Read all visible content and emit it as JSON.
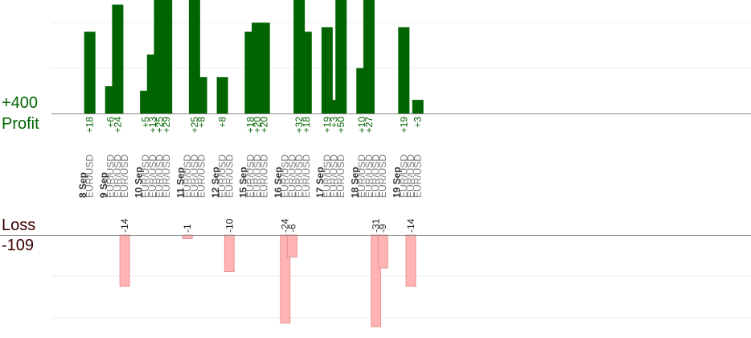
{
  "summary": {
    "profit_total": "+400",
    "profit_label": "Profit",
    "loss_label": "Loss",
    "loss_total": "-109"
  },
  "colors": {
    "profit_bar": "#006400",
    "profit_text": "#006400",
    "loss_bar": "#ffb3b3",
    "loss_bar_stroke": "#e08a8a",
    "loss_text": "#222222",
    "date_text": "#333333",
    "pair_text": "#777777",
    "axis": "#888888",
    "grid": "#eeeeee"
  },
  "chart_data": {
    "type": "bar",
    "profit_ylim": [
      0,
      25
    ],
    "loss_ylim": [
      -25,
      0
    ],
    "grid": true,
    "rows": [
      {
        "kind": "date",
        "label": "8 Sep"
      },
      {
        "kind": "trade",
        "pair": "EUR/USD",
        "value": 18
      },
      {
        "kind": "gap"
      },
      {
        "kind": "date",
        "label": "9 Sep"
      },
      {
        "kind": "trade",
        "pair": "EUR/USD",
        "value": 6
      },
      {
        "kind": "trade",
        "pair": "EUR/USD",
        "value": 24
      },
      {
        "kind": "trade",
        "pair": "EUR/USD",
        "value": -14
      },
      {
        "kind": "gap"
      },
      {
        "kind": "date",
        "label": "10 Sep"
      },
      {
        "kind": "trade",
        "pair": "EUR/USD",
        "value": 5
      },
      {
        "kind": "trade",
        "pair": "EUR/USD",
        "value": 13
      },
      {
        "kind": "trade",
        "pair": "EUR/USD",
        "value": 25
      },
      {
        "kind": "trade",
        "pair": "EUR/USD",
        "value": 29
      },
      {
        "kind": "gap"
      },
      {
        "kind": "date",
        "label": "11 Sep"
      },
      {
        "kind": "trade",
        "pair": "EUR/USD",
        "value": -1
      },
      {
        "kind": "trade",
        "pair": "EUR/USD",
        "value": 25
      },
      {
        "kind": "trade",
        "pair": "EUR/USD",
        "value": 8
      },
      {
        "kind": "gap"
      },
      {
        "kind": "date",
        "label": "12 Sep"
      },
      {
        "kind": "trade",
        "pair": "EUR/USD",
        "value": 8
      },
      {
        "kind": "trade",
        "pair": "EUR/USD",
        "value": -10
      },
      {
        "kind": "gap"
      },
      {
        "kind": "date",
        "label": "15 Sep"
      },
      {
        "kind": "trade",
        "pair": "EUR/USD",
        "value": 18
      },
      {
        "kind": "trade",
        "pair": "EUR/USD",
        "value": 20
      },
      {
        "kind": "trade",
        "pair": "EUR/USD",
        "value": 20
      },
      {
        "kind": "gap"
      },
      {
        "kind": "date",
        "label": "16 Sep"
      },
      {
        "kind": "trade",
        "pair": "EUR/USD",
        "value": -24
      },
      {
        "kind": "trade",
        "pair": "EUR/USD",
        "value": -6
      },
      {
        "kind": "trade",
        "pair": "EUR/USD",
        "value": 32
      },
      {
        "kind": "trade",
        "pair": "EUR/USD",
        "value": 18
      },
      {
        "kind": "gap"
      },
      {
        "kind": "date",
        "label": "17 Sep"
      },
      {
        "kind": "trade",
        "pair": "EUR/USD",
        "value": 19
      },
      {
        "kind": "trade",
        "pair": "EUR/USD",
        "value": 3
      },
      {
        "kind": "trade",
        "pair": "EUR/USD",
        "value": 50
      },
      {
        "kind": "gap"
      },
      {
        "kind": "date",
        "label": "18 Sep"
      },
      {
        "kind": "trade",
        "pair": "EUR/USD",
        "value": 10
      },
      {
        "kind": "trade",
        "pair": "EUR/USD",
        "value": 27
      },
      {
        "kind": "trade",
        "pair": "EUR/USD",
        "value": -31
      },
      {
        "kind": "trade",
        "pair": "EUR/USD",
        "value": -9
      },
      {
        "kind": "gap"
      },
      {
        "kind": "date",
        "label": "19 Sep"
      },
      {
        "kind": "trade",
        "pair": "EUR/USD",
        "value": 19
      },
      {
        "kind": "trade",
        "pair": "EUR/USD",
        "value": -14
      },
      {
        "kind": "trade",
        "pair": "EUR/USD",
        "value": 3
      }
    ]
  }
}
